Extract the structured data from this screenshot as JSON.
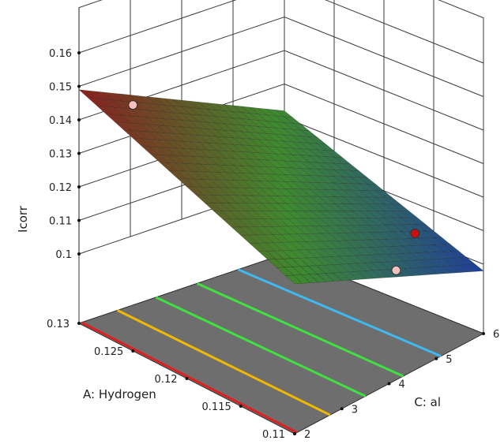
{
  "chart_data": {
    "type": "surface3d",
    "zlabel": "Icorr",
    "xlabel": "A: Hydrogen",
    "ylabel": "C: al",
    "x_range": [
      0.11,
      0.13
    ],
    "y_range": [
      2,
      6
    ],
    "z_range": [
      0.1,
      0.16
    ],
    "x_ticks": [
      "0.11",
      "0.115",
      "0.12",
      "0.125",
      "0.13"
    ],
    "y_ticks": [
      "2",
      "3",
      "4",
      "5",
      "6"
    ],
    "z_ticks": [
      "0.1",
      "0.11",
      "0.12",
      "0.13",
      "0.14",
      "0.15",
      "0.16"
    ],
    "surface_corners": {
      "x_0.13_y_2": 0.149,
      "x_0.13_y_6": 0.122,
      "x_0.11_y_2": 0.124,
      "x_0.11_y_6": 0.098
    },
    "floor_contours": [
      {
        "y": 2.05,
        "color": "#e02020"
      },
      {
        "y": 2.75,
        "color": "#f0b800"
      },
      {
        "y": 3.5,
        "color": "#40e040"
      },
      {
        "y": 4.3,
        "color": "#40e040"
      },
      {
        "y": 5.1,
        "color": "#40b8f0"
      }
    ],
    "design_points": [
      {
        "x": 0.13,
        "y": 3.05,
        "z": 0.139,
        "color": "#f4c0c0"
      },
      {
        "x": 0.11,
        "y": 4.55,
        "z": 0.12,
        "color": "#cc1010"
      },
      {
        "x": 0.11,
        "y": 4.15,
        "z": 0.112,
        "color": "#f4c0c0"
      }
    ],
    "colors": {
      "floor": "#6e6e6e",
      "grid": "#3a3a3a",
      "surface_high": "#8a1f1f",
      "surface_mid": "#3f8a2f",
      "surface_low": "#1f3f9a"
    }
  }
}
